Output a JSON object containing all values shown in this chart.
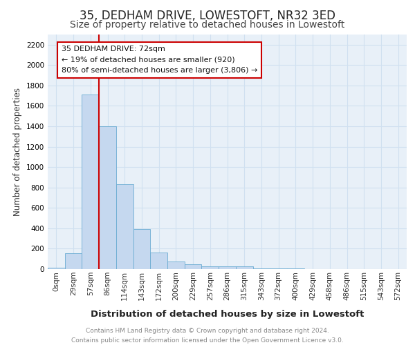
{
  "title1": "35, DEDHAM DRIVE, LOWESTOFT, NR32 3ED",
  "title2": "Size of property relative to detached houses in Lowestoft",
  "xlabel": "Distribution of detached houses by size in Lowestoft",
  "ylabel": "Number of detached properties",
  "annotation_line": "35 DEDHAM DRIVE: 72sqm",
  "annotation_pct1": "← 19% of detached houses are smaller (920)",
  "annotation_pct2": "80% of semi-detached houses are larger (3,806) →",
  "bar_color": "#c5d8ef",
  "bar_edge_color": "#6aabd2",
  "line_color": "#cc0000",
  "annotation_box_edge": "#cc0000",
  "grid_color": "#d0e0f0",
  "bg_color": "#e8f0f8",
  "categories": [
    "0sqm",
    "29sqm",
    "57sqm",
    "86sqm",
    "114sqm",
    "143sqm",
    "172sqm",
    "200sqm",
    "229sqm",
    "257sqm",
    "286sqm",
    "315sqm",
    "343sqm",
    "372sqm",
    "400sqm",
    "429sqm",
    "458sqm",
    "486sqm",
    "515sqm",
    "543sqm",
    "572sqm"
  ],
  "values": [
    15,
    155,
    1710,
    1400,
    835,
    390,
    165,
    75,
    45,
    25,
    25,
    25,
    10,
    8,
    5,
    3,
    2,
    2,
    1,
    1,
    1
  ],
  "red_line_x": 2.5,
  "ylim": [
    0,
    2300
  ],
  "yticks": [
    0,
    200,
    400,
    600,
    800,
    1000,
    1200,
    1400,
    1600,
    1800,
    2000,
    2200
  ],
  "footer": "Contains HM Land Registry data © Crown copyright and database right 2024.\nContains public sector information licensed under the Open Government Licence v3.0.",
  "footer_color": "#888888",
  "title1_fontsize": 12,
  "title2_fontsize": 10,
  "xlabel_fontsize": 9.5,
  "ylabel_fontsize": 8.5,
  "tick_fontsize": 7.5,
  "footer_fontsize": 6.5
}
